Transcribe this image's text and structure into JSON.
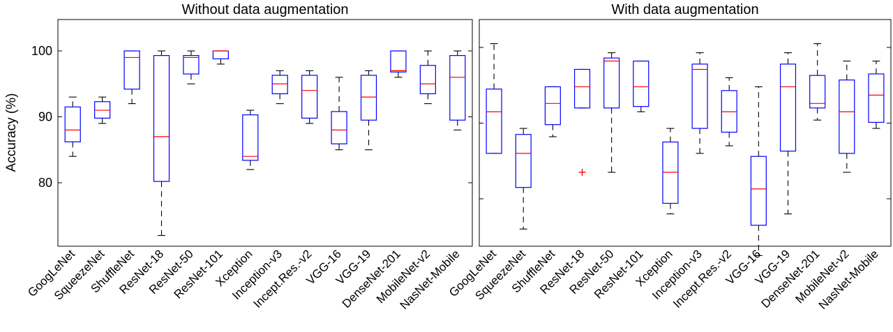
{
  "chart_data": [
    {
      "type": "boxplot",
      "title": "Without data augmentation",
      "ylabel": "Accuracy (%)",
      "ylim": [
        71,
        104.5
      ],
      "yticks": [
        80,
        90,
        100
      ],
      "yticklabels": [
        "80",
        "90",
        "100"
      ],
      "categories": [
        "GoogLeNet",
        "SqueezeNet",
        "ShuffleNet",
        "ResNet-18",
        "ResNet-50",
        "ResNet-101",
        "Xception",
        "Inception-v3",
        "Incept.Res.-v2",
        "VGG-16",
        "VGG-19",
        "DenseNet-201",
        "MobileNet-v2",
        "NasNet-Mobile"
      ],
      "boxes": [
        {
          "min": 84,
          "q1": 86.2,
          "median": 88,
          "q3": 91.5,
          "max": 93
        },
        {
          "min": 89,
          "q1": 89.8,
          "median": 91,
          "q3": 92.3,
          "max": 93
        },
        {
          "min": 92,
          "q1": 94.2,
          "median": 99,
          "q3": 100,
          "max": 100
        },
        {
          "min": 72,
          "q1": 80.2,
          "median": 87,
          "q3": 99.3,
          "max": 100
        },
        {
          "min": 95,
          "q1": 96.5,
          "median": 99,
          "q3": 99.3,
          "max": 100
        },
        {
          "min": 98,
          "q1": 98.8,
          "median": 100,
          "q3": 100,
          "max": 100
        },
        {
          "min": 82,
          "q1": 83.4,
          "median": 84,
          "q3": 90.3,
          "max": 91
        },
        {
          "min": 92,
          "q1": 93.5,
          "median": 95,
          "q3": 96.3,
          "max": 97
        },
        {
          "min": 89,
          "q1": 89.8,
          "median": 94,
          "q3": 96.3,
          "max": 97
        },
        {
          "min": 85,
          "q1": 85.9,
          "median": 88,
          "q3": 90.8,
          "max": 96
        },
        {
          "min": 85,
          "q1": 89.5,
          "median": 93,
          "q3": 96.3,
          "max": 97
        },
        {
          "min": 96,
          "q1": 96.8,
          "median": 97,
          "q3": 100,
          "max": 100
        },
        {
          "min": 92,
          "q1": 93.5,
          "median": 95,
          "q3": 97.8,
          "max": 100
        },
        {
          "min": 88,
          "q1": 89.5,
          "median": 96,
          "q3": 99.3,
          "max": 100
        }
      ],
      "outliers": []
    },
    {
      "type": "boxplot",
      "title": "With data augmentation",
      "ylim": [
        71,
        104.5
      ],
      "yticks": [
        80,
        90,
        100
      ],
      "yticklabels": [],
      "categories": [
        "GoogLeNet",
        "SqueezeNet",
        "ShuffleNet",
        "ResNet-18",
        "ResNet-50",
        "ResNet-101",
        "Xception",
        "Inception-v3",
        "Incept.Res.-v2",
        "VGG-16",
        "VGG-19",
        "DenseNet-201",
        "MobileNet-v2",
        "NasNet-Mobile"
      ],
      "boxes": [
        {
          "min": 86,
          "q1": 86,
          "median": 91.5,
          "q3": 94.5,
          "max": 100.5
        },
        {
          "min": 76,
          "q1": 81.5,
          "median": 86,
          "q3": 88.5,
          "max": 89.3
        },
        {
          "min": 88.2,
          "q1": 89.8,
          "median": 92.6,
          "q3": 94.8,
          "max": 94.8
        },
        {
          "min": 92,
          "q1": 92,
          "median": 94.8,
          "q3": 97.1,
          "max": 97.1
        },
        {
          "min": 83.5,
          "q1": 92,
          "median": 98.2,
          "q3": 98.6,
          "max": 99.3
        },
        {
          "min": 91.5,
          "q1": 92.2,
          "median": 94.8,
          "q3": 98.2,
          "max": 98.2
        },
        {
          "min": 78,
          "q1": 79.4,
          "median": 83.5,
          "q3": 87.5,
          "max": 89.3
        },
        {
          "min": 86,
          "q1": 89.3,
          "median": 97.1,
          "q3": 97.8,
          "max": 99.3
        },
        {
          "min": 87,
          "q1": 88.8,
          "median": 91.5,
          "q3": 94.3,
          "max": 96
        },
        {
          "min": 72.5,
          "q1": 76.5,
          "median": 81.3,
          "q3": 85.6,
          "max": 94.8
        },
        {
          "min": 78,
          "q1": 86.3,
          "median": 94.8,
          "q3": 97.8,
          "max": 99.3
        },
        {
          "min": 90.4,
          "q1": 92,
          "median": 92.6,
          "q3": 96.3,
          "max": 100.5
        },
        {
          "min": 83.5,
          "q1": 86,
          "median": 91.5,
          "q3": 95.7,
          "max": 98.2
        },
        {
          "min": 89.3,
          "q1": 90.1,
          "median": 93.7,
          "q3": 96.5,
          "max": 98.2
        }
      ],
      "outliers": [
        {
          "index": 3,
          "value": 83.5
        }
      ]
    }
  ]
}
